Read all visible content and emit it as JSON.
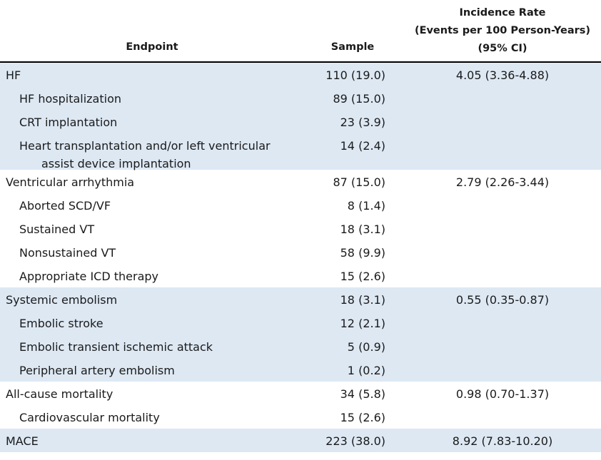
{
  "header": {
    "endpoint": "Endpoint",
    "sample": "Sample",
    "incidence_line1": "Incidence Rate",
    "incidence_line2": "(Events per 100 Person-Years)",
    "incidence_line3": "(95% CI)"
  },
  "rows": [
    {
      "label": "HF",
      "sample": "110 (19.0)",
      "rate": "4.05 (3.36-4.88)"
    },
    {
      "label": "HF hospitalization",
      "sample": "89 (15.0)",
      "rate": ""
    },
    {
      "label": "CRT implantation",
      "sample": "23 (3.9)",
      "rate": ""
    },
    {
      "label": "Heart transplantation and/or left ventricular",
      "label_cont": "assist device implantation",
      "sample": "14 (2.4)",
      "rate": ""
    },
    {
      "label": "Ventricular arrhythmia",
      "sample": "87 (15.0)",
      "rate": "2.79 (2.26-3.44)"
    },
    {
      "label": "Aborted SCD/VF",
      "sample": "8 (1.4)",
      "rate": ""
    },
    {
      "label": "Sustained VT",
      "sample": "18 (3.1)",
      "rate": ""
    },
    {
      "label": "Nonsustained VT",
      "sample": "58 (9.9)",
      "rate": ""
    },
    {
      "label": "Appropriate ICD therapy",
      "sample": "15 (2.6)",
      "rate": ""
    },
    {
      "label": "Systemic embolism",
      "sample": "18 (3.1)",
      "rate": "0.55 (0.35-0.87)"
    },
    {
      "label": "Embolic stroke",
      "sample": "12 (2.1)",
      "rate": ""
    },
    {
      "label": "Embolic transient ischemic attack",
      "sample": "5 (0.9)",
      "rate": ""
    },
    {
      "label": "Peripheral artery embolism",
      "sample": "1 (0.2)",
      "rate": ""
    },
    {
      "label": "All-cause mortality",
      "sample": "34 (5.8)",
      "rate": "0.98 (0.70-1.37)"
    },
    {
      "label": "Cardiovascular mortality",
      "sample": "15 (2.6)",
      "rate": ""
    },
    {
      "label": "MACE",
      "sample": "223 (38.0)",
      "rate": "8.92 (7.83-10.20)"
    }
  ],
  "colors": {
    "shaded_row": "#dde8f3",
    "text": "#1a1a1a",
    "rule": "#000000"
  }
}
